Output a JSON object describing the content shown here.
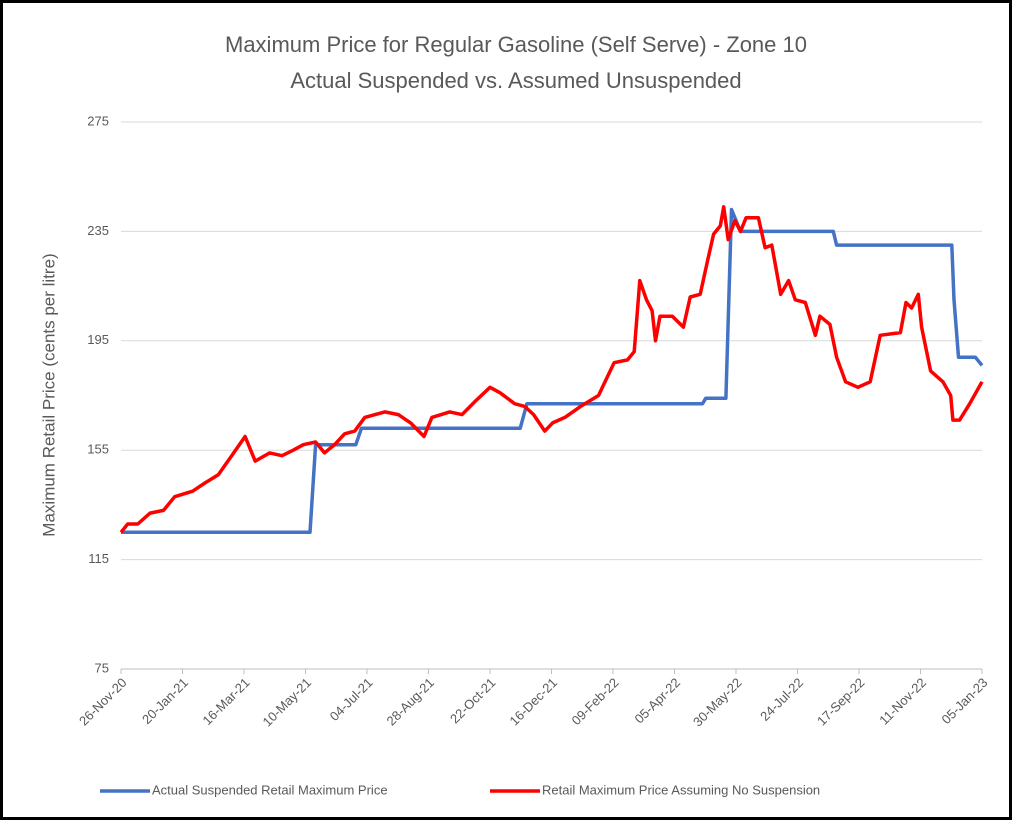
{
  "chart_data": {
    "type": "line",
    "title": "Maximum Price for Regular Gasoline (Self Serve) - Zone 10",
    "subtitle": "Actual Suspended vs. Assumed Unsuspended",
    "y_label": "Maximum Retail Price (cents per litre)",
    "ylim": [
      75,
      275
    ],
    "yticks": [
      75,
      115,
      155,
      195,
      235,
      275
    ],
    "xlim": [
      "2020-11-26",
      "2023-01-05"
    ],
    "xticks": [
      {
        "value": "2020-11-26",
        "label": "26-Nov-20"
      },
      {
        "value": "2021-01-20",
        "label": "20-Jan-21"
      },
      {
        "value": "2021-03-16",
        "label": "16-Mar-21"
      },
      {
        "value": "2021-05-10",
        "label": "10-May-21"
      },
      {
        "value": "2021-07-04",
        "label": "04-Jul-21"
      },
      {
        "value": "2021-08-28",
        "label": "28-Aug-21"
      },
      {
        "value": "2021-10-22",
        "label": "22-Oct-21"
      },
      {
        "value": "2021-12-16",
        "label": "16-Dec-21"
      },
      {
        "value": "2022-02-09",
        "label": "09-Feb-22"
      },
      {
        "value": "2022-04-05",
        "label": "05-Apr-22"
      },
      {
        "value": "2022-05-30",
        "label": "30-May-22"
      },
      {
        "value": "2022-07-24",
        "label": "24-Jul-22"
      },
      {
        "value": "2022-09-17",
        "label": "17-Sep-22"
      },
      {
        "value": "2022-11-11",
        "label": "11-Nov-22"
      },
      {
        "value": "2023-01-05",
        "label": "05-Jan-23"
      }
    ],
    "grid": true,
    "legend": "bottom",
    "series": [
      {
        "name": "Actual Suspended Retail Maximum Price",
        "color": "#4472c4",
        "x": [
          "2020-11-26",
          "2021-05-14",
          "2021-05-19",
          "2021-06-24",
          "2021-06-29",
          "2021-11-18",
          "2021-11-24",
          "2022-04-30",
          "2022-05-03",
          "2022-05-21",
          "2022-05-26",
          "2022-06-03",
          "2022-08-25",
          "2022-08-28",
          "2022-12-09",
          "2022-12-11",
          "2022-12-15",
          "2022-12-30",
          "2023-01-05"
        ],
        "values": [
          125,
          125,
          157,
          157,
          163,
          163,
          172,
          172,
          174,
          174,
          243,
          235,
          235,
          230,
          230,
          210,
          189,
          189,
          186
        ]
      },
      {
        "name": "Retail Maximum Price Assuming No Suspension",
        "color": "#ff0000",
        "x": [
          "2020-11-26",
          "2020-12-02",
          "2020-12-11",
          "2020-12-22",
          "2021-01-03",
          "2021-01-13",
          "2021-01-29",
          "2021-02-09",
          "2021-02-21",
          "2021-03-05",
          "2021-03-17",
          "2021-03-26",
          "2021-04-08",
          "2021-04-19",
          "2021-04-29",
          "2021-05-08",
          "2021-05-19",
          "2021-05-27",
          "2021-06-05",
          "2021-06-14",
          "2021-06-23",
          "2021-07-02",
          "2021-07-20",
          "2021-08-01",
          "2021-08-12",
          "2021-08-24",
          "2021-08-31",
          "2021-09-16",
          "2021-09-27",
          "2021-10-09",
          "2021-10-22",
          "2021-10-31",
          "2021-11-13",
          "2021-11-22",
          "2021-11-30",
          "2021-12-10",
          "2021-12-17",
          "2021-12-28",
          "2022-01-11",
          "2022-01-27",
          "2022-02-10",
          "2022-02-22",
          "2022-02-28",
          "2022-03-05",
          "2022-03-11",
          "2022-03-16",
          "2022-03-19",
          "2022-03-23",
          "2022-04-03",
          "2022-04-13",
          "2022-04-19",
          "2022-04-28",
          "2022-05-05",
          "2022-05-10",
          "2022-05-16",
          "2022-05-19",
          "2022-05-23",
          "2022-05-29",
          "2022-06-03",
          "2022-06-08",
          "2022-06-19",
          "2022-06-25",
          "2022-07-01",
          "2022-07-09",
          "2022-07-16",
          "2022-07-22",
          "2022-07-31",
          "2022-08-09",
          "2022-08-13",
          "2022-08-22",
          "2022-08-28",
          "2022-09-05",
          "2022-09-16",
          "2022-09-27",
          "2022-10-06",
          "2022-10-24",
          "2022-10-29",
          "2022-11-03",
          "2022-11-09",
          "2022-11-12",
          "2022-11-20",
          "2022-12-01",
          "2022-12-08",
          "2022-12-10",
          "2022-12-16",
          "2022-12-25",
          "2023-01-05"
        ],
        "values": [
          125,
          128,
          128,
          132,
          133,
          138,
          140,
          143,
          146,
          153,
          160,
          151,
          154,
          153,
          155,
          157,
          158,
          154,
          157,
          161,
          162,
          167,
          169,
          168,
          165,
          160,
          167,
          169,
          168,
          173,
          178,
          176,
          172,
          171,
          168,
          162,
          165,
          167,
          171,
          175,
          187,
          188,
          191,
          217,
          210,
          206,
          195,
          204,
          204,
          200,
          211,
          212,
          225,
          234,
          237,
          244,
          232,
          239,
          235,
          240,
          240,
          229,
          230,
          212,
          217,
          210,
          209,
          197,
          204,
          201,
          189,
          180,
          178,
          180,
          197,
          198,
          209,
          207,
          212,
          200,
          184,
          180,
          175,
          166,
          166,
          172,
          180
        ]
      }
    ]
  }
}
